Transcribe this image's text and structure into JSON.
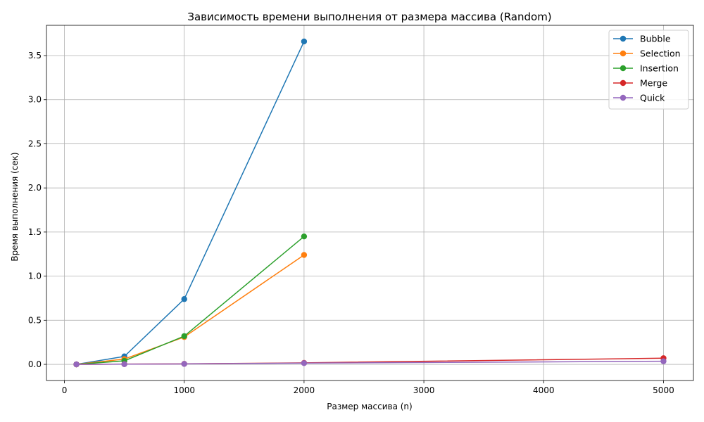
{
  "chart_data": {
    "type": "line",
    "title": "Зависимость времени выполнения от размера массива (Random)",
    "xlabel": "Размер массива (n)",
    "ylabel": "Время выполнения (сек)",
    "xlim": [
      -150,
      5250
    ],
    "ylim": [
      -0.183,
      3.843
    ],
    "xticks": [
      0,
      1000,
      2000,
      3000,
      4000,
      5000
    ],
    "yticks": [
      0.0,
      0.5,
      1.0,
      1.5,
      2.0,
      2.5,
      3.0,
      3.5
    ],
    "xtick_labels": [
      "0",
      "1000",
      "2000",
      "3000",
      "4000",
      "5000"
    ],
    "ytick_labels": [
      "0.0",
      "0.5",
      "1.0",
      "1.5",
      "2.0",
      "2.5",
      "3.0",
      "3.5"
    ],
    "grid": true,
    "legend_position": "top-right",
    "series": [
      {
        "name": "Bubble",
        "color": "#1f77b4",
        "x": [
          100,
          500,
          1000,
          2000
        ],
        "y": [
          0.0,
          0.09,
          0.74,
          3.66
        ]
      },
      {
        "name": "Selection",
        "color": "#ff7f0e",
        "x": [
          100,
          500,
          1000,
          2000
        ],
        "y": [
          0.0,
          0.06,
          0.31,
          1.24
        ]
      },
      {
        "name": "Insertion",
        "color": "#2ca02c",
        "x": [
          100,
          500,
          1000,
          2000
        ],
        "y": [
          0.0,
          0.04,
          0.32,
          1.45
        ]
      },
      {
        "name": "Merge",
        "color": "#d62728",
        "x": [
          100,
          500,
          1000,
          2000,
          5000
        ],
        "y": [
          0.0,
          0.003,
          0.006,
          0.017,
          0.07
        ]
      },
      {
        "name": "Quick",
        "color": "#9467bd",
        "x": [
          100,
          500,
          1000,
          2000,
          5000
        ],
        "y": [
          0.0,
          0.002,
          0.005,
          0.014,
          0.035
        ]
      }
    ]
  }
}
